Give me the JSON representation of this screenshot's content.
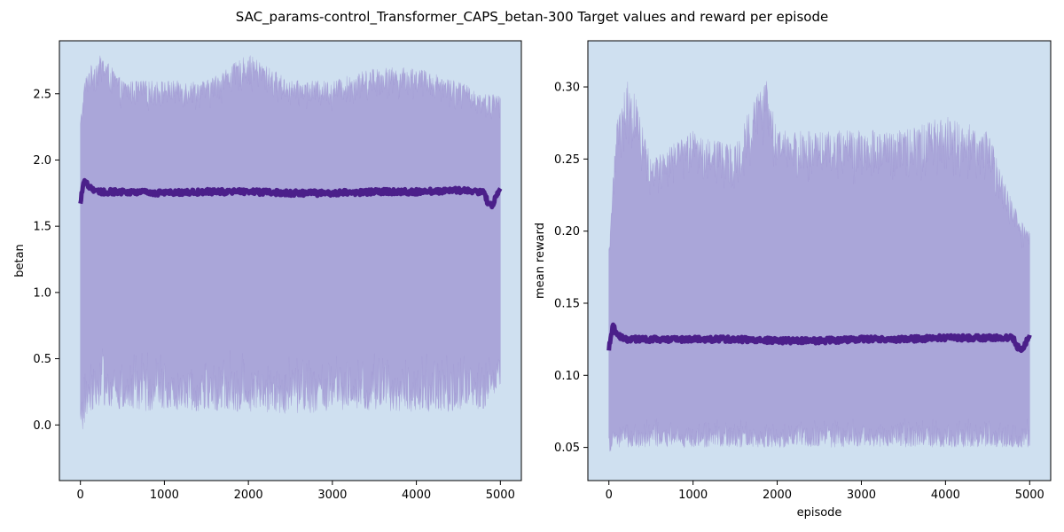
{
  "figure": {
    "suptitle": "SAC_params-control_Transformer_CAPS_betan-300 Target values and reward per episode"
  },
  "colors": {
    "axes_bg": "#cfe0f0",
    "band": "#9b8fd0",
    "mean_line": "#4b1f8a",
    "frame": "#000000"
  },
  "chart_data": [
    {
      "type": "line",
      "xlabel": "",
      "ylabel": "betan",
      "xlim": [
        -250,
        5250
      ],
      "ylim": [
        -0.42,
        2.9
      ],
      "x_ticks": [
        0,
        1000,
        2000,
        3000,
        4000,
        5000
      ],
      "x_tick_labels": [
        "0",
        "1000",
        "2000",
        "3000",
        "4000",
        "5000"
      ],
      "y_ticks": [
        0.0,
        0.5,
        1.0,
        1.5,
        2.0,
        2.5
      ],
      "y_tick_labels": [
        "0.0",
        "0.5",
        "1.0",
        "1.5",
        "2.0",
        "2.5"
      ],
      "grid": false,
      "series": [
        {
          "role": "band",
          "x": [
            0,
            50,
            100,
            250,
            500,
            750,
            1000,
            1500,
            2000,
            2500,
            3000,
            3500,
            4000,
            4500,
            4800,
            5000
          ],
          "low": [
            -0.2,
            0.0,
            0.1,
            0.15,
            0.1,
            0.1,
            0.12,
            0.1,
            0.1,
            0.08,
            0.1,
            0.1,
            0.1,
            0.1,
            0.1,
            0.3
          ],
          "high": [
            2.3,
            2.6,
            2.7,
            2.8,
            2.6,
            2.6,
            2.6,
            2.6,
            2.8,
            2.6,
            2.6,
            2.7,
            2.7,
            2.6,
            2.5,
            2.5
          ]
        },
        {
          "role": "mean",
          "x": [
            0,
            25,
            50,
            100,
            200,
            500,
            1000,
            1500,
            2000,
            2500,
            3000,
            3500,
            4000,
            4500,
            4800,
            4850,
            4900,
            4950,
            5000
          ],
          "y": [
            1.68,
            1.78,
            1.85,
            1.8,
            1.76,
            1.76,
            1.75,
            1.76,
            1.76,
            1.75,
            1.75,
            1.76,
            1.76,
            1.77,
            1.76,
            1.68,
            1.66,
            1.72,
            1.79
          ]
        }
      ]
    },
    {
      "type": "line",
      "xlabel": "episode",
      "ylabel": "mean reward",
      "xlim": [
        -250,
        5250
      ],
      "ylim": [
        0.027,
        0.332
      ],
      "x_ticks": [
        0,
        1000,
        2000,
        3000,
        4000,
        5000
      ],
      "x_tick_labels": [
        "0",
        "1000",
        "2000",
        "3000",
        "4000",
        "5000"
      ],
      "y_ticks": [
        0.05,
        0.1,
        0.15,
        0.2,
        0.25,
        0.3
      ],
      "y_tick_labels": [
        "0.05",
        "0.10",
        "0.15",
        "0.20",
        "0.25",
        "0.30"
      ],
      "grid": false,
      "series": [
        {
          "role": "band",
          "x": [
            0,
            50,
            100,
            250,
            500,
            750,
            1000,
            1500,
            1850,
            2000,
            2500,
            3000,
            3500,
            4000,
            4500,
            4800,
            5000
          ],
          "low": [
            0.045,
            0.048,
            0.05,
            0.05,
            0.05,
            0.05,
            0.05,
            0.05,
            0.05,
            0.05,
            0.05,
            0.05,
            0.05,
            0.05,
            0.05,
            0.05,
            0.05
          ],
          "high": [
            0.19,
            0.24,
            0.28,
            0.31,
            0.25,
            0.26,
            0.27,
            0.26,
            0.31,
            0.27,
            0.27,
            0.27,
            0.27,
            0.28,
            0.27,
            0.22,
            0.2
          ]
        },
        {
          "role": "mean",
          "x": [
            0,
            25,
            50,
            100,
            200,
            500,
            1000,
            1500,
            2000,
            2500,
            3000,
            3500,
            4000,
            4500,
            4800,
            4850,
            4900,
            4950,
            5000
          ],
          "y": [
            0.118,
            0.128,
            0.134,
            0.128,
            0.125,
            0.125,
            0.125,
            0.125,
            0.124,
            0.124,
            0.125,
            0.125,
            0.126,
            0.126,
            0.126,
            0.12,
            0.118,
            0.122,
            0.128
          ]
        }
      ]
    }
  ]
}
